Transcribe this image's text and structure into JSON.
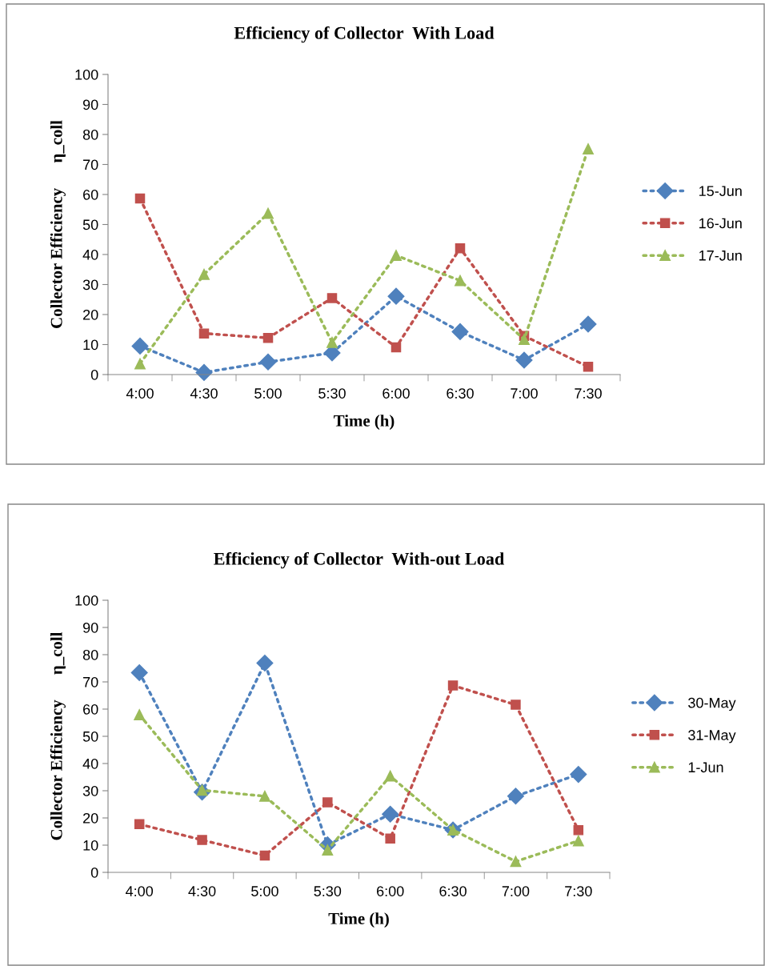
{
  "chart_data": [
    {
      "type": "line",
      "title": "Efficiency of Collector  With Load",
      "xlabel": "Time (h)",
      "ylabel": "Collector Efficiency      η_coll",
      "categories": [
        "4:00",
        "4:30",
        "5:00",
        "5:30",
        "6:00",
        "6:30",
        "7:00",
        "7:30"
      ],
      "series": [
        {
          "name": "15-Jun",
          "color": "#4f81bd",
          "marker": "diamond",
          "values": [
            9.5,
            0.7,
            4.2,
            7.2,
            26.1,
            14.3,
            4.8,
            16.8
          ]
        },
        {
          "name": "16-Jun",
          "color": "#c0504d",
          "marker": "square",
          "values": [
            58.7,
            13.7,
            12.2,
            25.5,
            9.1,
            42.1,
            12.9,
            2.6
          ]
        },
        {
          "name": "17-Jun",
          "color": "#9bbb59",
          "marker": "triangle",
          "values": [
            3.6,
            33.4,
            53.7,
            10.7,
            39.7,
            31.3,
            11.7,
            75.2
          ]
        }
      ],
      "ylim": [
        0,
        100
      ],
      "yticks": [
        0,
        10,
        20,
        30,
        40,
        50,
        60,
        70,
        80,
        90,
        100
      ],
      "grid": false,
      "legend": "right",
      "line_style": "dotted"
    },
    {
      "type": "line",
      "title": "Efficiency of Collector  With-out Load",
      "xlabel": "Time (h)",
      "ylabel": "Collector Efficiency      η_coll",
      "categories": [
        "4:00",
        "4:30",
        "5:00",
        "5:30",
        "6:00",
        "6:30",
        "7:00",
        "7:30"
      ],
      "series": [
        {
          "name": "30-May",
          "color": "#4f81bd",
          "marker": "diamond",
          "values": [
            73.4,
            29.5,
            76.9,
            10.1,
            21.4,
            15.6,
            28.0,
            36.0
          ]
        },
        {
          "name": "31-May",
          "color": "#c0504d",
          "marker": "square",
          "values": [
            17.7,
            11.9,
            6.2,
            25.7,
            12.4,
            68.7,
            61.6,
            15.5
          ]
        },
        {
          "name": "1-Jun",
          "color": "#9bbb59",
          "marker": "triangle",
          "values": [
            57.9,
            30.2,
            28.0,
            8.2,
            35.4,
            15.6,
            4.0,
            11.6
          ]
        }
      ],
      "ylim": [
        0,
        100
      ],
      "yticks": [
        0,
        10,
        20,
        30,
        40,
        50,
        60,
        70,
        80,
        90,
        100
      ],
      "grid": false,
      "legend": "right",
      "line_style": "dotted"
    }
  ]
}
